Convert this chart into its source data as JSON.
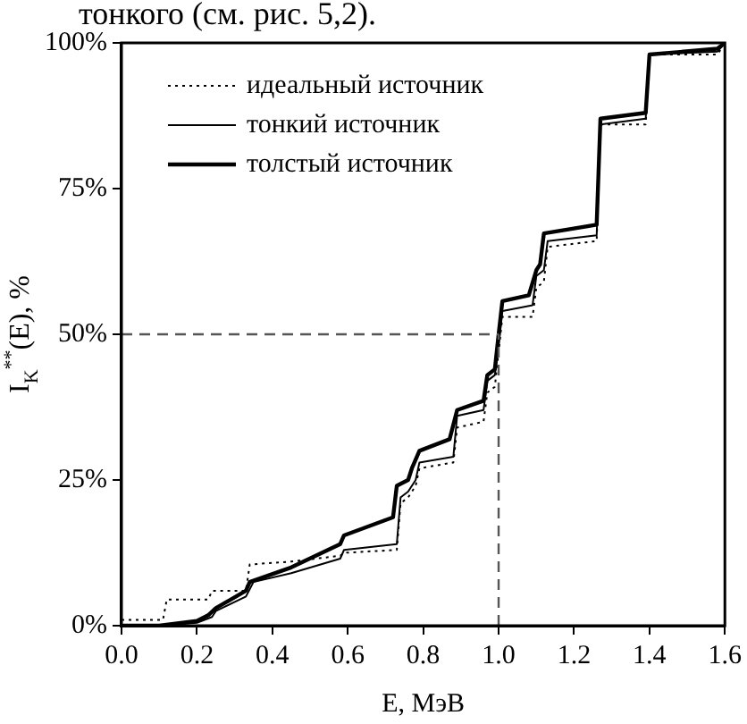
{
  "chart_data": {
    "type": "line",
    "xlabel": "E, МэВ",
    "ylabel": "I$_{K}$$^{**}$(E), %",
    "annotations": [
      "тонкого (см. рис. 5,2)."
    ],
    "xlim": [
      0,
      1.6
    ],
    "xticks": [
      {
        "value": 0,
        "label": "0.0"
      },
      {
        "value": 0.2,
        "label": "0.2"
      },
      {
        "value": 0.4,
        "label": "0.4"
      },
      {
        "value": 0.6,
        "label": "0.6"
      },
      {
        "value": 0.8,
        "label": "0.8"
      },
      {
        "value": 1,
        "label": "1.0"
      },
      {
        "value": 1.2,
        "label": "1.2"
      },
      {
        "value": 1.4,
        "label": "1.4"
      },
      {
        "value": 1.6,
        "label": "1.6"
      }
    ],
    "ylim": [
      0,
      100
    ],
    "yticks": [
      {
        "value": 0,
        "label": "0%"
      },
      {
        "value": 25,
        "label": "25%"
      },
      {
        "value": 50,
        "label": "50%"
      },
      {
        "value": 75,
        "label": "75%"
      },
      {
        "value": 100,
        "label": "100%"
      }
    ],
    "legend": "top left",
    "grid": false,
    "marker": "none",
    "ref_lines": [
      {
        "axis": "y",
        "value": 50,
        "line_style": "dashed",
        "color": "#555555"
      },
      {
        "axis": "x",
        "value": 1.0,
        "line_style": "dashed",
        "color": "#555555"
      }
    ],
    "series": [
      {
        "name": "идеальный источник",
        "color": "#000000",
        "line_style": "dotted",
        "x": [
          0,
          0.11,
          0.12,
          0.23,
          0.24,
          0.33,
          0.34,
          0.45,
          0.58,
          0.59,
          0.73,
          0.74,
          0.76,
          0.78,
          0.79,
          0.88,
          0.89,
          0.96,
          0.97,
          0.99,
          1.0,
          1.01,
          1.09,
          1.1,
          1.12,
          1.13,
          1.26,
          1.27,
          1.39,
          1.4,
          1.58,
          1.6
        ],
        "values": [
          1,
          1,
          4.5,
          4.5,
          6,
          6,
          10.5,
          11,
          12,
          12.5,
          13,
          21,
          22,
          24,
          27,
          28,
          34,
          35,
          40,
          41,
          47,
          53,
          53,
          58,
          59,
          65,
          66,
          86,
          86,
          98,
          98,
          100
        ]
      },
      {
        "name": "тонкий источник",
        "color": "#000000",
        "line_style": "solid",
        "x": [
          0,
          0.1,
          0.2,
          0.24,
          0.25,
          0.33,
          0.35,
          0.45,
          0.58,
          0.59,
          0.73,
          0.74,
          0.76,
          0.78,
          0.79,
          0.88,
          0.89,
          0.96,
          0.97,
          0.99,
          1.0,
          1.01,
          1.09,
          1.1,
          1.12,
          1.13,
          1.26,
          1.27,
          1.39,
          1.4,
          1.58,
          1.6
        ],
        "values": [
          0,
          0,
          0.5,
          1.5,
          2.5,
          5,
          7.5,
          9,
          11.5,
          13,
          14,
          22,
          23,
          25,
          28,
          29,
          36,
          37,
          42,
          43,
          48,
          54,
          55,
          60,
          61,
          66,
          67,
          86,
          87,
          98,
          98.5,
          100
        ]
      },
      {
        "name": "толстый источник",
        "color": "#000000",
        "line_style": "solid",
        "x": [
          0,
          0.1,
          0.2,
          0.23,
          0.25,
          0.33,
          0.34,
          0.45,
          0.58,
          0.59,
          0.72,
          0.73,
          0.76,
          0.77,
          0.79,
          0.87,
          0.89,
          0.96,
          0.97,
          0.99,
          1.0,
          1.01,
          1.08,
          1.1,
          1.11,
          1.12,
          1.26,
          1.27,
          1.39,
          1.4,
          1.58,
          1.6
        ],
        "values": [
          0,
          0,
          0.8,
          1.8,
          3,
          6,
          7.5,
          10,
          14,
          15.5,
          18.6,
          24,
          25,
          27,
          30,
          32,
          37,
          38.6,
          43,
          44,
          50,
          55.7,
          56.7,
          61,
          62,
          67.3,
          68.8,
          87,
          88,
          98,
          99,
          100
        ]
      }
    ]
  }
}
